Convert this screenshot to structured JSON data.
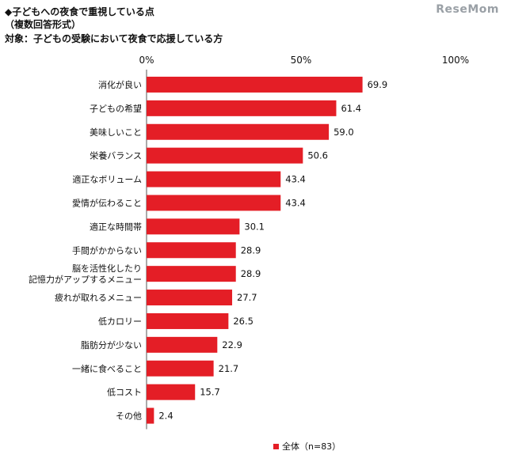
{
  "header": {
    "line1": "◆子どもへの夜食で重視している点",
    "line2": "（複数回答形式）",
    "line3": "対象：子どもの受験において夜食で応援している方"
  },
  "logo": "ReseMom",
  "chart_data": {
    "type": "bar",
    "orientation": "horizontal",
    "categories": [
      "消化が良い",
      "子どもの希望",
      "美味しいこと",
      "栄養バランス",
      "適正なボリューム",
      "愛情が伝わること",
      "適正な時間帯",
      "手間がかからない",
      "脳を活性化したり\n記憶力がアップするメニュー",
      "疲れが取れるメニュー",
      "低カロリー",
      "脂肪分が少ない",
      "一緒に食べること",
      "低コスト",
      "その他"
    ],
    "series": [
      {
        "name": "全体（n=83）",
        "values": [
          69.9,
          61.4,
          59.0,
          50.6,
          43.4,
          43.4,
          30.1,
          28.9,
          28.9,
          27.7,
          26.5,
          22.9,
          21.7,
          15.7,
          2.4
        ]
      }
    ],
    "value_labels": [
      "69.9",
      "61.4",
      "59.0",
      "50.6",
      "43.4",
      "43.4",
      "30.1",
      "28.9",
      "28.9",
      "27.7",
      "26.5",
      "22.9",
      "21.7",
      "15.7",
      "2.4"
    ],
    "xlim": [
      0,
      100
    ],
    "xticks": [
      "0%",
      "50%",
      "100%"
    ],
    "bar_color": "#e41e26",
    "legend": "bottom",
    "grid": false
  }
}
